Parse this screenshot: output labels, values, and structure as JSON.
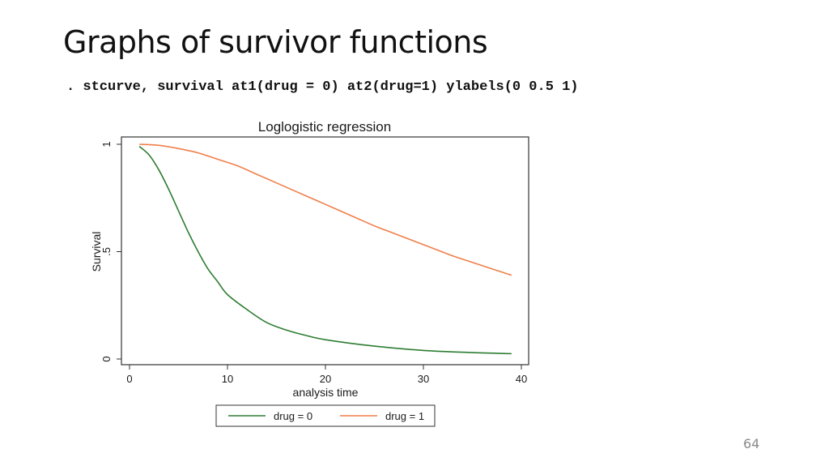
{
  "slide": {
    "title": "Graphs of survivor functions",
    "command": ". stcurve, survival at1(drug = 0) at2(drug=1) ylabels(0 0.5 1)",
    "page_number": "64"
  },
  "chart_data": {
    "type": "line",
    "title": "Loglogistic regression",
    "xlabel": "analysis time",
    "ylabel": "Survival",
    "xlim": [
      0,
      40
    ],
    "ylim": [
      0,
      1
    ],
    "x_ticks": [
      0,
      10,
      20,
      30,
      40
    ],
    "x_tick_labels": [
      "0",
      "10",
      "20",
      "30",
      "40"
    ],
    "y_ticks": [
      0,
      0.5,
      1
    ],
    "y_tick_labels": [
      "0",
      ".5",
      "1"
    ],
    "grid": false,
    "legend_position": "bottom",
    "series": [
      {
        "name": "drug = 0",
        "color": "#2e7d32",
        "x": [
          1,
          2,
          3,
          4,
          5,
          6,
          7,
          8,
          9,
          10,
          12,
          14,
          16,
          18,
          20,
          25,
          30,
          35,
          39
        ],
        "y": [
          0.99,
          0.95,
          0.88,
          0.79,
          0.69,
          0.59,
          0.5,
          0.42,
          0.36,
          0.3,
          0.23,
          0.17,
          0.135,
          0.11,
          0.09,
          0.06,
          0.04,
          0.03,
          0.025
        ]
      },
      {
        "name": "drug = 1",
        "color": "#f07f4a",
        "x": [
          1,
          3,
          5,
          7,
          9,
          11,
          13,
          15,
          17,
          19,
          21,
          23,
          25,
          27,
          29,
          31,
          33,
          35,
          37,
          39
        ],
        "y": [
          1.0,
          0.995,
          0.98,
          0.96,
          0.93,
          0.9,
          0.86,
          0.82,
          0.78,
          0.74,
          0.7,
          0.66,
          0.62,
          0.585,
          0.55,
          0.515,
          0.48,
          0.45,
          0.42,
          0.39
        ]
      }
    ]
  }
}
